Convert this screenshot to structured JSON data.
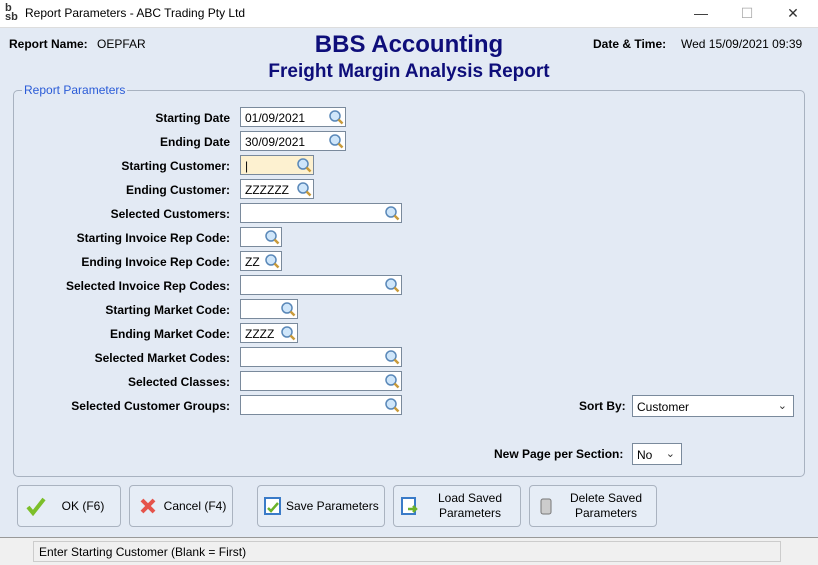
{
  "window": {
    "title": "Report Parameters - ABC Trading Pty Ltd",
    "logo": "bsb",
    "minimize": "—",
    "maximize": "☐",
    "close": "✕"
  },
  "header": {
    "report_name_label": "Report Name:",
    "report_name": "OEPFAR",
    "app_title": "BBS Accounting",
    "report_title": "Freight Margin Analysis Report",
    "datetime_label": "Date & Time:",
    "datetime": "Wed 15/09/2021 09:39"
  },
  "group": {
    "label": "Report Parameters"
  },
  "fields": [
    {
      "label": "Starting Date",
      "value": "01/09/2021"
    },
    {
      "label": "Ending Date",
      "value": "30/09/2021"
    },
    {
      "label": "Starting Customer:",
      "value": "|"
    },
    {
      "label": "Ending Customer:",
      "value": "ZZZZZZ"
    },
    {
      "label": "Selected Customers:",
      "value": ""
    },
    {
      "label": "Starting Invoice Rep Code:",
      "value": ""
    },
    {
      "label": "Ending Invoice Rep Code:",
      "value": "ZZ"
    },
    {
      "label": "Selected Invoice Rep Codes:",
      "value": ""
    },
    {
      "label": "Starting Market Code:",
      "value": ""
    },
    {
      "label": "Ending Market Code:",
      "value": "ZZZZ"
    },
    {
      "label": "Selected Market Codes:",
      "value": ""
    },
    {
      "label": "Selected Classes:",
      "value": ""
    },
    {
      "label": "Selected Customer Groups:",
      "value": ""
    }
  ],
  "sort_by": {
    "label": "Sort By:",
    "value": "Customer"
  },
  "new_page": {
    "label": "New Page per Section:",
    "value": "No"
  },
  "buttons": {
    "ok": "OK (F6)",
    "cancel": "Cancel (F4)",
    "save": "Save Parameters",
    "load": "Load Saved Parameters",
    "delete": "Delete Saved Parameters"
  },
  "status": "Enter Starting Customer (Blank = First)",
  "colors": {
    "title": "#0e0e7a",
    "group_label": "#2a5bd7",
    "focused_input": "#fdf1d0"
  }
}
